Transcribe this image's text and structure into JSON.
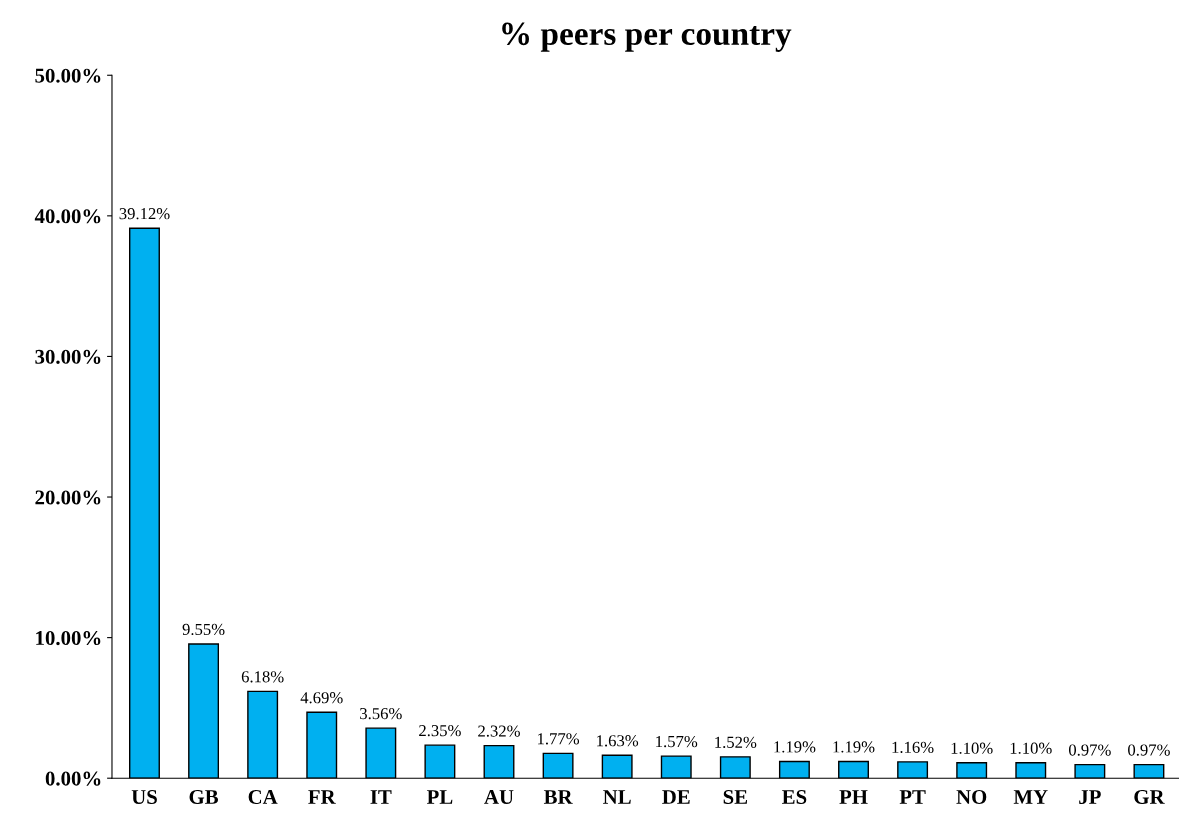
{
  "chart_data": {
    "type": "bar",
    "title": "% peers per country",
    "categories": [
      "US",
      "GB",
      "CA",
      "FR",
      "IT",
      "PL",
      "AU",
      "BR",
      "NL",
      "DE",
      "SE",
      "ES",
      "PH",
      "PT",
      "NO",
      "MY",
      "JP",
      "GR"
    ],
    "values": [
      39.12,
      9.55,
      6.18,
      4.69,
      3.56,
      2.35,
      2.32,
      1.77,
      1.63,
      1.57,
      1.52,
      1.19,
      1.19,
      1.16,
      1.1,
      1.1,
      0.97,
      0.97
    ],
    "value_labels": [
      "39.12%",
      "9.55%",
      "6.18%",
      "4.69%",
      "3.56%",
      "2.35%",
      "2.32%",
      "1.77%",
      "1.63%",
      "1.57%",
      "1.52%",
      "1.19%",
      "1.19%",
      "1.16%",
      "1.10%",
      "1.10%",
      "0.97%",
      "0.97%"
    ],
    "color": "#00b0f0",
    "ylim": [
      0,
      50
    ],
    "yticks": [
      {
        "value": 0,
        "label": "0.00%"
      },
      {
        "value": 10,
        "label": "10.00%"
      },
      {
        "value": 20,
        "label": "20.00%"
      },
      {
        "value": 30,
        "label": "30.00%"
      },
      {
        "value": 40,
        "label": "40.00%"
      },
      {
        "value": 50,
        "label": "50.00%"
      }
    ],
    "grid": false,
    "legend": false
  }
}
